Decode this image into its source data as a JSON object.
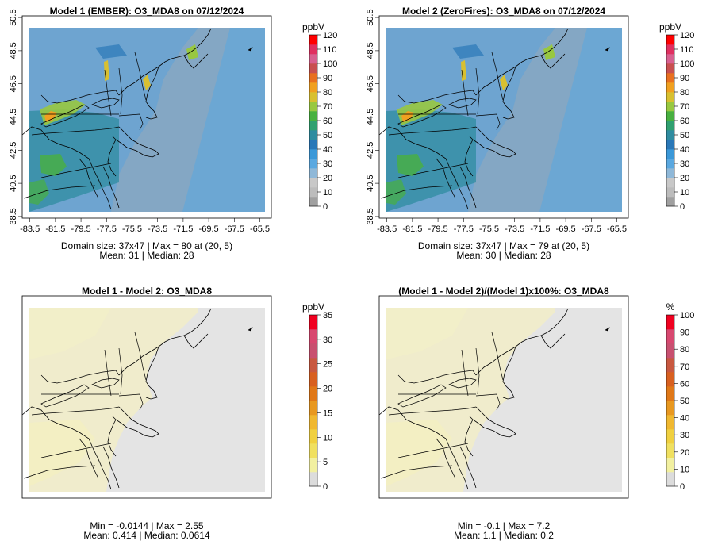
{
  "colors": {
    "abs_scale": [
      "#a0a0a0",
      "#bcbcbc",
      "#c8c8c8",
      "#8fb8d8",
      "#5aa8e0",
      "#3b98d8",
      "#2a78b8",
      "#2f8ca0",
      "#30a070",
      "#48b040",
      "#98c840",
      "#d8c030",
      "#f0a020",
      "#e87020",
      "#c85050",
      "#d86090",
      "#e03060",
      "#ff0000"
    ],
    "diff_scale": [
      "#dcdcdc",
      "#f2f0a0",
      "#f0e060",
      "#f0d040",
      "#f0b830",
      "#e89820",
      "#e07818",
      "#d86020",
      "#c85840",
      "#c85070",
      "#d84870",
      "#f00020"
    ],
    "domain_fill": "#6ea4d0",
    "ocean_fill": "#8aa8c0",
    "diff_fill": "#e4e4e4",
    "diff_land_fill": "#f0eccc"
  },
  "chart_data": [
    {
      "type": "heatmap",
      "title": "Model 1 (EMBER): O3_MDA8 on 07/12/2024",
      "xticks": [
        "-83.5",
        "-81.5",
        "-79.5",
        "-77.5",
        "-75.5",
        "-73.5",
        "-71.5",
        "-69.5",
        "-67.5",
        "-65.5"
      ],
      "yticks": [
        "38.5",
        "40.5",
        "42.5",
        "44.5",
        "46.5",
        "48.5",
        "50.5"
      ],
      "xlim": [
        -84.1,
        -64.6
      ],
      "ylim": [
        38.4,
        50.6
      ],
      "colorbar": {
        "unit": "ppbV",
        "ticks": [
          "0",
          "10",
          "20",
          "30",
          "40",
          "50",
          "60",
          "70",
          "80",
          "90",
          "100",
          "110",
          "120"
        ],
        "min": 0,
        "max": 120
      },
      "stats_line1": "Domain size: 37x47 | Max = 80 at (20, 5)",
      "stats_line2": "Mean: 31 |  Median: 28"
    },
    {
      "type": "heatmap",
      "title": "Model 2 (ZeroFires): O3_MDA8 on 07/12/2024",
      "xticks": [
        "-83.5",
        "-81.5",
        "-79.5",
        "-77.5",
        "-75.5",
        "-73.5",
        "-71.5",
        "-69.5",
        "-67.5",
        "-65.5"
      ],
      "yticks": [
        "38.5",
        "40.5",
        "42.5",
        "44.5",
        "46.5",
        "48.5",
        "50.5"
      ],
      "xlim": [
        -84.1,
        -64.6
      ],
      "ylim": [
        38.4,
        50.6
      ],
      "colorbar": {
        "unit": "ppbV",
        "ticks": [
          "0",
          "10",
          "20",
          "30",
          "40",
          "50",
          "60",
          "70",
          "80",
          "90",
          "100",
          "110",
          "120"
        ],
        "min": 0,
        "max": 120
      },
      "stats_line1": "Domain size: 37x47 | Max = 79 at (20, 5)",
      "stats_line2": "Mean: 30 |  Median: 28"
    },
    {
      "type": "heatmap",
      "title": "Model 1 - Model 2: O3_MDA8",
      "colorbar": {
        "unit": "ppbV",
        "ticks": [
          "0",
          "5",
          "10",
          "15",
          "20",
          "25",
          "30",
          "35"
        ],
        "min": 0,
        "max": 35
      },
      "stats_line1": "Min = -0.0144 | Max = 2.55",
      "stats_line2": "Mean: 0.414 |  Median: 0.0614"
    },
    {
      "type": "heatmap",
      "title": "(Model 1 - Model 2)/(Model 1)x100%: O3_MDA8",
      "colorbar": {
        "unit": "%",
        "ticks": [
          "0",
          "10",
          "20",
          "30",
          "40",
          "50",
          "60",
          "70",
          "80",
          "90",
          "100"
        ],
        "min": 0,
        "max": 100
      },
      "stats_line1": "Min = -0.1 | Max = 7.2",
      "stats_line2": "Mean: 1.1 |  Median: 0.2"
    }
  ]
}
